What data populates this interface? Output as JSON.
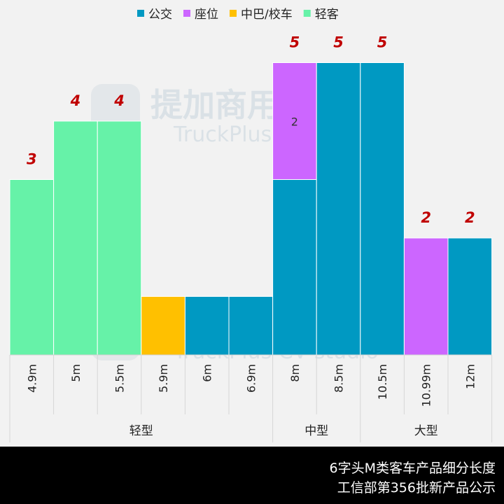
{
  "chart_data": {
    "type": "bar",
    "stacked": true,
    "legend": {
      "position": "top"
    },
    "series": [
      {
        "name": "公交",
        "color": "#0099c2",
        "values": [
          0,
          0,
          0,
          0,
          1,
          1,
          3,
          5,
          5,
          0,
          2
        ]
      },
      {
        "name": "座位",
        "color": "#cc66ff",
        "values": [
          0,
          0,
          0,
          0,
          0,
          0,
          2,
          0,
          0,
          2,
          0
        ]
      },
      {
        "name": "中巴/校车",
        "color": "#ffc000",
        "values": [
          0,
          0,
          0,
          1,
          0,
          0,
          0,
          0,
          0,
          0,
          0
        ]
      },
      {
        "name": "轻客",
        "color": "#66f2a8",
        "values": [
          3,
          4,
          4,
          0,
          0,
          0,
          0,
          0,
          0,
          0,
          0
        ]
      }
    ],
    "categories": [
      "4.9m",
      "5m",
      "5.5m",
      "5.9m",
      "6m",
      "6.9m",
      "8m",
      "8.5m",
      "10.5m",
      "10.99m",
      "12m"
    ],
    "totals_shown": [
      {
        "index": 0,
        "label": "3"
      },
      {
        "index": 1,
        "label": "4"
      },
      {
        "index": 2,
        "label": "4"
      },
      {
        "index": 6,
        "label": "5"
      },
      {
        "index": 7,
        "label": "5"
      },
      {
        "index": 8,
        "label": "5"
      },
      {
        "index": 9,
        "label": "2"
      },
      {
        "index": 10,
        "label": "2"
      }
    ],
    "inner_labels": [
      {
        "index": 6,
        "series": 1,
        "label": "2"
      }
    ],
    "groups": [
      {
        "label": "轻型",
        "start": 0,
        "end": 5
      },
      {
        "label": "中型",
        "start": 6,
        "end": 7
      },
      {
        "label": "大型",
        "start": 8,
        "end": 10
      }
    ],
    "ylim": [
      0,
      6
    ]
  },
  "watermark": {
    "main": "提加商用车",
    "sub": "TruckPlus CV studio"
  },
  "footer": {
    "line1": "6字头M类客车产品细分长度",
    "line2": "工信部第356批新产品公示"
  }
}
